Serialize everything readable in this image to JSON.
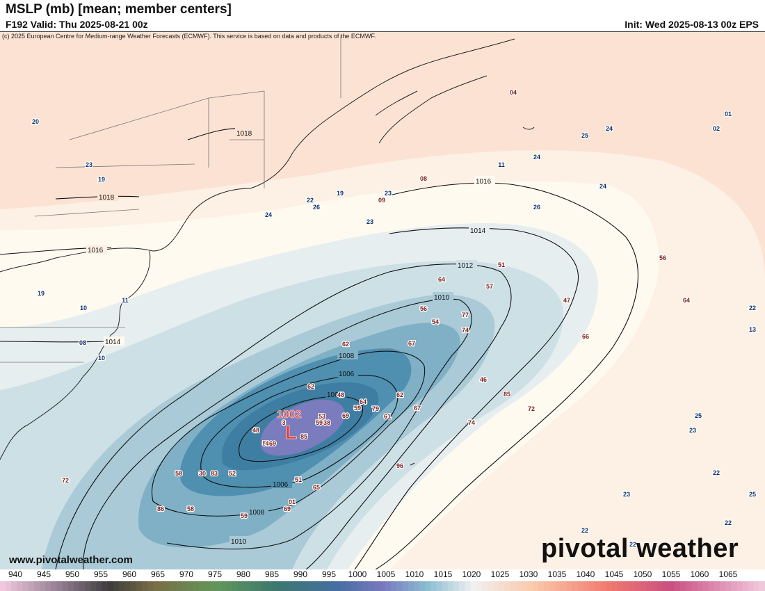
{
  "header": {
    "title": "MSLP (mb) [mean; member centers]",
    "valid": "F192 Valid: Thu 2025-08-21 00z",
    "init": "Init: Wed 2025-08-13 00z EPS",
    "copyright": "(c) 2025 European Centre for Medium-range Weather Forecasts (ECMWF). This service is based on data and products of the ECMWF."
  },
  "map": {
    "low_center": {
      "label": "L",
      "value": "1002",
      "color": "#e8392b"
    },
    "contour_labels": [
      "1018",
      "1018",
      "1016",
      "1016",
      "1014",
      "1014",
      "1012",
      "1010",
      "1008",
      "1006",
      "1004",
      "1006",
      "1008",
      "1010"
    ],
    "member_low_labels": [
      "62",
      "48",
      "53",
      "59",
      "38",
      "64",
      "59",
      "79",
      "61",
      "62",
      "48",
      "3",
      "5",
      "4",
      "69",
      "85",
      "69",
      "67",
      "30",
      "83",
      "52",
      "58",
      "51",
      "65",
      "01",
      "69",
      "59",
      "58",
      "86",
      "62",
      "67",
      "56",
      "54",
      "77",
      "74",
      "64",
      "57",
      "51",
      "67",
      "47",
      "66",
      "46",
      "85",
      "72",
      "74",
      "96",
      "08",
      "09",
      "23",
      "56",
      "64",
      "04",
      "72"
    ],
    "member_high_labels": [
      "20",
      "23",
      "19",
      "22",
      "26",
      "19",
      "23",
      "24",
      "23",
      "24",
      "25",
      "24",
      "11",
      "26",
      "24",
      "01",
      "02",
      "22",
      "13",
      "25",
      "23",
      "22",
      "23",
      "25",
      "22",
      "22",
      "22",
      "19",
      "10",
      "11",
      "08",
      "10"
    ]
  },
  "footer": {
    "url": "www.pivotalweather.com",
    "brand": "pivotal weather"
  },
  "colorbar": {
    "ticks": [
      "940",
      "945",
      "950",
      "955",
      "960",
      "965",
      "970",
      "975",
      "980",
      "985",
      "990",
      "995",
      "1000",
      "1005",
      "1010",
      "1015",
      "1020",
      "1025",
      "1030",
      "1035",
      "1040",
      "1045",
      "1050",
      "1055",
      "1060",
      "1065"
    ]
  }
}
